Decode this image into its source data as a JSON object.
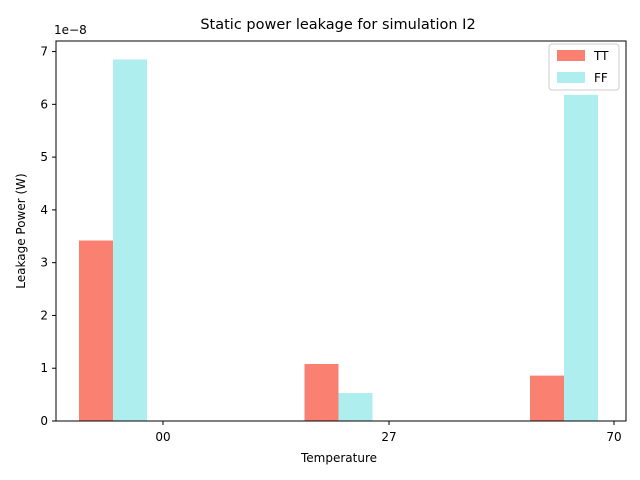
{
  "chart_data": {
    "type": "bar",
    "title": "Static power leakage for simulation I2",
    "xlabel": "Temperature",
    "ylabel": "Leakage Power (W)",
    "offset_text": "1e−8",
    "categories": [
      "00",
      "27",
      "70"
    ],
    "series": [
      {
        "name": "TT",
        "color": "#fa8072",
        "values": [
          3.42e-08,
          1.08e-08,
          8.6e-09
        ]
      },
      {
        "name": "FF",
        "color": "#afeeee",
        "values": [
          6.85e-08,
          5.3e-09,
          6.18e-08
        ]
      }
    ],
    "ylim": [
      0,
      7.2e-08
    ],
    "yticks": [
      0,
      1,
      2,
      3,
      4,
      5,
      6,
      7
    ],
    "ytick_scale": 1e-08,
    "grid": false,
    "legend_position": "top-right"
  }
}
